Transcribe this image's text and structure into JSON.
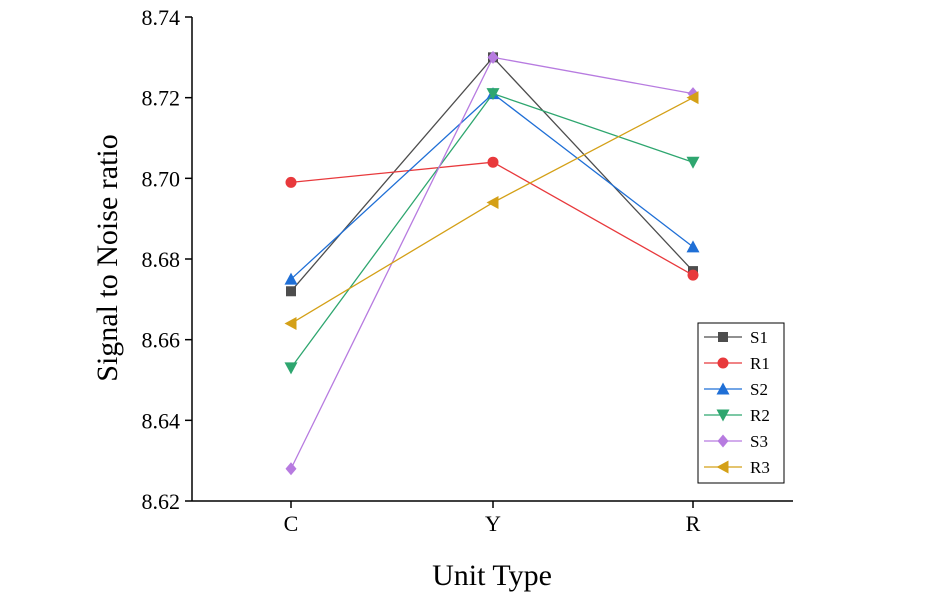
{
  "chart_data": {
    "type": "line",
    "title": "",
    "xlabel": "Unit Type",
    "ylabel": "Signal to Noise ratio",
    "categories": [
      "C",
      "Y",
      "R"
    ],
    "ylim": [
      8.62,
      8.74
    ],
    "yticks": [
      "8.62",
      "8.64",
      "8.66",
      "8.68",
      "8.70",
      "8.72",
      "8.74"
    ],
    "grid": false,
    "legend_position": "bottom-right",
    "series": [
      {
        "name": "S1",
        "values": [
          8.672,
          8.73,
          8.677
        ],
        "color": "#4d4d4d",
        "marker": "square"
      },
      {
        "name": "R1",
        "values": [
          8.699,
          8.704,
          8.676
        ],
        "color": "#e8393c",
        "marker": "circle"
      },
      {
        "name": "S2",
        "values": [
          8.675,
          8.721,
          8.683
        ],
        "color": "#1f6fd6",
        "marker": "triangle-up"
      },
      {
        "name": "R2",
        "values": [
          8.653,
          8.721,
          8.704
        ],
        "color": "#2ea66f",
        "marker": "triangle-down"
      },
      {
        "name": "S3",
        "values": [
          8.628,
          8.73,
          8.721
        ],
        "color": "#b77be0",
        "marker": "diamond"
      },
      {
        "name": "R3",
        "values": [
          8.664,
          8.694,
          8.72
        ],
        "color": "#d4a017",
        "marker": "triangle-left"
      }
    ]
  }
}
